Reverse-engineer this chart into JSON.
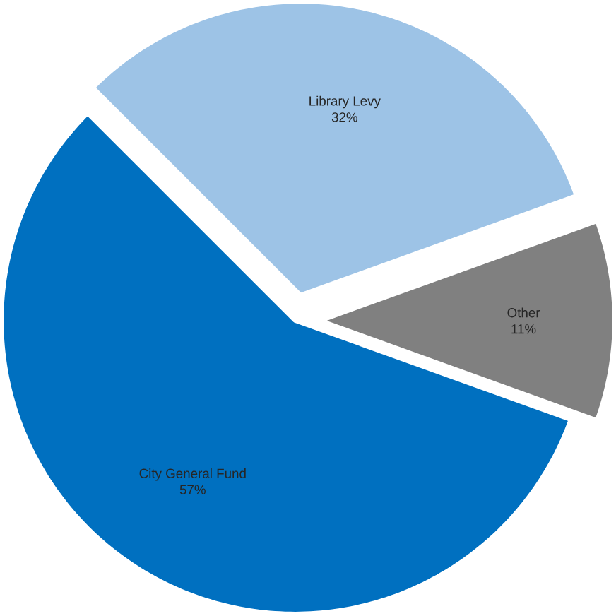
{
  "chart_data": {
    "type": "pie",
    "categories": [
      "Library Levy",
      "Other",
      "City General Fund"
    ],
    "values": [
      32,
      11,
      57
    ],
    "colors": [
      "#9dc3e6",
      "#808080",
      "#0070c0"
    ],
    "value_labels": [
      "32%",
      "11%",
      "57%"
    ]
  }
}
